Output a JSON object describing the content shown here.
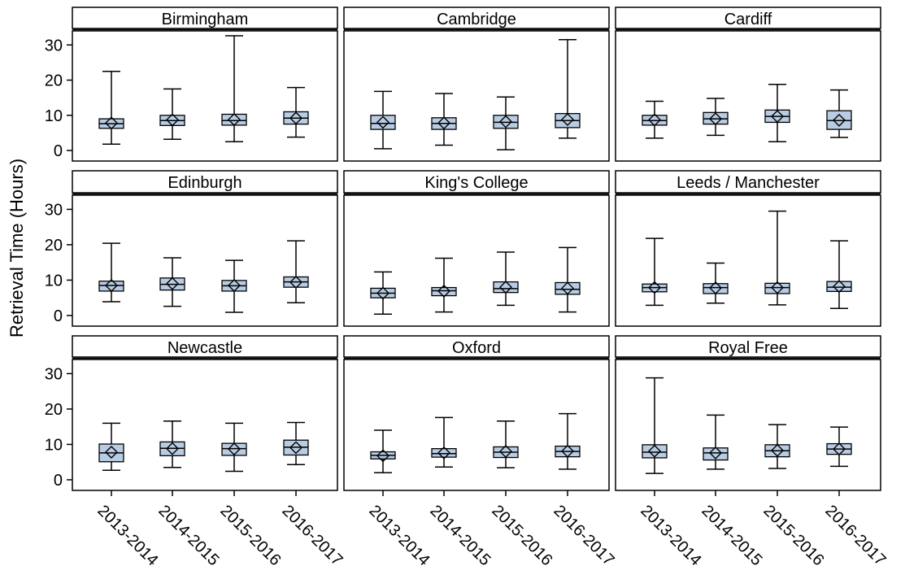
{
  "chart_data": {
    "type": "boxplot",
    "ylabel": "Retrieval Time (Hours)",
    "categories": [
      "2013-2014",
      "2014-2015",
      "2015-2016",
      "2016-2017"
    ],
    "ylim": [
      -3,
      34
    ],
    "yticks": [
      0,
      10,
      20,
      30
    ],
    "grid": false,
    "colors": {
      "box_fill": "#b8cce4",
      "stroke": "#000000"
    },
    "panels": [
      {
        "name": "Birmingham",
        "boxes": [
          {
            "min": 1.8,
            "q1": 6.3,
            "median": 7.6,
            "q3": 9.0,
            "max": 22.5,
            "mean": 7.8
          },
          {
            "min": 3.2,
            "q1": 7.1,
            "median": 8.5,
            "q3": 10.0,
            "max": 17.5,
            "mean": 8.7
          },
          {
            "min": 2.5,
            "q1": 7.2,
            "median": 8.5,
            "q3": 10.3,
            "max": 32.6,
            "mean": 8.8
          },
          {
            "min": 3.8,
            "q1": 7.5,
            "median": 9.2,
            "q3": 11.0,
            "max": 17.9,
            "mean": 9.2
          }
        ]
      },
      {
        "name": "Cambridge",
        "boxes": [
          {
            "min": 0.5,
            "q1": 6.0,
            "median": 7.7,
            "q3": 10.0,
            "max": 16.8,
            "mean": 8.0
          },
          {
            "min": 1.5,
            "q1": 6.0,
            "median": 7.7,
            "q3": 9.3,
            "max": 16.2,
            "mean": 7.8
          },
          {
            "min": 0.2,
            "q1": 6.3,
            "median": 8.0,
            "q3": 10.0,
            "max": 15.2,
            "mean": 8.2
          },
          {
            "min": 3.5,
            "q1": 6.5,
            "median": 8.5,
            "q3": 10.5,
            "max": 31.5,
            "mean": 8.8
          }
        ]
      },
      {
        "name": "Cardiff",
        "boxes": [
          {
            "min": 3.5,
            "q1": 7.2,
            "median": 8.5,
            "q3": 10.0,
            "max": 14.0,
            "mean": 8.7
          },
          {
            "min": 4.3,
            "q1": 7.5,
            "median": 9.0,
            "q3": 10.8,
            "max": 14.8,
            "mean": 9.0
          },
          {
            "min": 2.5,
            "q1": 8.0,
            "median": 9.7,
            "q3": 11.5,
            "max": 18.8,
            "mean": 9.7
          },
          {
            "min": 3.7,
            "q1": 6.0,
            "median": 8.5,
            "q3": 11.3,
            "max": 17.2,
            "mean": 8.6
          }
        ]
      },
      {
        "name": "Edinburgh",
        "boxes": [
          {
            "min": 3.9,
            "q1": 6.9,
            "median": 8.5,
            "q3": 9.7,
            "max": 20.4,
            "mean": 8.5
          },
          {
            "min": 2.6,
            "q1": 7.2,
            "median": 8.8,
            "q3": 10.6,
            "max": 16.3,
            "mean": 9.0
          },
          {
            "min": 0.9,
            "q1": 6.9,
            "median": 8.4,
            "q3": 9.9,
            "max": 15.6,
            "mean": 8.5
          },
          {
            "min": 3.6,
            "q1": 8.0,
            "median": 9.5,
            "q3": 10.9,
            "max": 21.1,
            "mean": 9.4
          }
        ]
      },
      {
        "name": "King's College",
        "boxes": [
          {
            "min": 0.4,
            "q1": 5.0,
            "median": 6.3,
            "q3": 7.7,
            "max": 12.3,
            "mean": 6.3
          },
          {
            "min": 1.0,
            "q1": 5.6,
            "median": 7.0,
            "q3": 7.9,
            "max": 16.2,
            "mean": 6.9
          },
          {
            "min": 2.9,
            "q1": 6.5,
            "median": 7.6,
            "q3": 9.5,
            "max": 17.9,
            "mean": 8.0
          },
          {
            "min": 1.0,
            "q1": 6.0,
            "median": 7.4,
            "q3": 9.3,
            "max": 19.2,
            "mean": 7.7
          }
        ]
      },
      {
        "name": "Leeds / Manchester",
        "boxes": [
          {
            "min": 2.9,
            "q1": 6.7,
            "median": 7.9,
            "q3": 8.9,
            "max": 21.8,
            "mean": 7.9
          },
          {
            "min": 3.5,
            "q1": 6.2,
            "median": 7.9,
            "q3": 9.0,
            "max": 14.8,
            "mean": 7.8
          },
          {
            "min": 3.0,
            "q1": 6.2,
            "median": 7.9,
            "q3": 9.1,
            "max": 29.5,
            "mean": 7.9
          },
          {
            "min": 2.0,
            "q1": 6.8,
            "median": 8.0,
            "q3": 9.6,
            "max": 21.1,
            "mean": 8.2
          }
        ]
      },
      {
        "name": "Newcastle",
        "boxes": [
          {
            "min": 2.7,
            "q1": 5.1,
            "median": 7.6,
            "q3": 10.1,
            "max": 16.0,
            "mean": 7.8
          },
          {
            "min": 3.5,
            "q1": 6.8,
            "median": 8.9,
            "q3": 10.7,
            "max": 16.6,
            "mean": 8.8
          },
          {
            "min": 2.4,
            "q1": 6.9,
            "median": 8.8,
            "q3": 10.3,
            "max": 16.0,
            "mean": 8.7
          },
          {
            "min": 4.3,
            "q1": 7.0,
            "median": 9.2,
            "q3": 11.2,
            "max": 16.2,
            "mean": 9.1
          }
        ]
      },
      {
        "name": "Oxford",
        "boxes": [
          {
            "min": 2.0,
            "q1": 5.9,
            "median": 6.9,
            "q3": 7.9,
            "max": 14.0,
            "mean": 6.8
          },
          {
            "min": 3.6,
            "q1": 6.4,
            "median": 7.4,
            "q3": 8.8,
            "max": 17.6,
            "mean": 7.6
          },
          {
            "min": 3.4,
            "q1": 6.3,
            "median": 7.8,
            "q3": 9.3,
            "max": 16.6,
            "mean": 8.0
          },
          {
            "min": 3.0,
            "q1": 6.5,
            "median": 8.0,
            "q3": 9.5,
            "max": 18.7,
            "mean": 8.1
          }
        ]
      },
      {
        "name": "Royal Free",
        "boxes": [
          {
            "min": 1.8,
            "q1": 6.2,
            "median": 7.8,
            "q3": 9.9,
            "max": 28.8,
            "mean": 8.1
          },
          {
            "min": 3.0,
            "q1": 5.6,
            "median": 7.6,
            "q3": 9.0,
            "max": 18.3,
            "mean": 7.6
          },
          {
            "min": 3.2,
            "q1": 6.5,
            "median": 8.2,
            "q3": 9.9,
            "max": 15.6,
            "mean": 8.3
          },
          {
            "min": 3.8,
            "q1": 7.2,
            "median": 8.7,
            "q3": 10.2,
            "max": 14.9,
            "mean": 8.7
          }
        ]
      }
    ]
  }
}
